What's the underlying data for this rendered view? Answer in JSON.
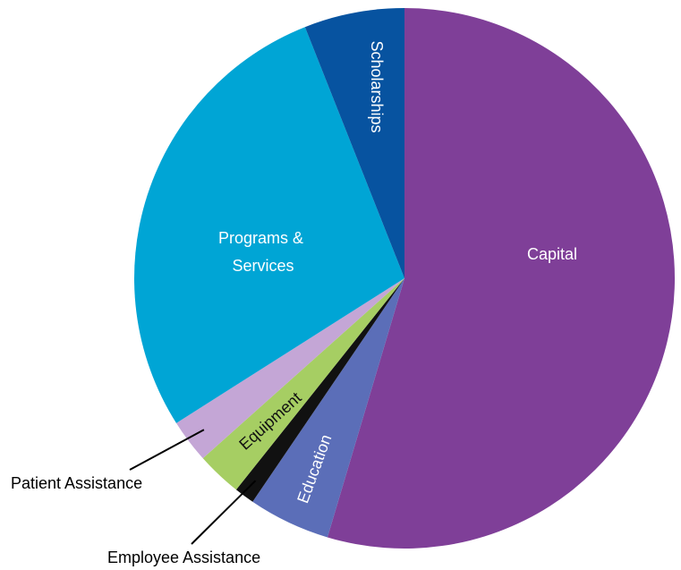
{
  "chart_data": {
    "type": "pie",
    "start": "top",
    "direction": "clockwise",
    "slices": [
      {
        "label": "Capital",
        "value": 54.6,
        "color": "#7f3f98"
      },
      {
        "label": "Education",
        "value": 4.9,
        "color": "#5b6eb8"
      },
      {
        "label": "Employee Assistance",
        "value": 1.2,
        "color": "#111111"
      },
      {
        "label": "Equipment",
        "value": 2.7,
        "color": "#a6ce63"
      },
      {
        "label": "Patient Assistance",
        "value": 2.6,
        "color": "#c4a6d6"
      },
      {
        "label": "Programs & Services",
        "value": 28.0,
        "color": "#00a5d5"
      },
      {
        "label": "Scholarships",
        "value": 6.0,
        "color": "#0753a0"
      }
    ]
  }
}
